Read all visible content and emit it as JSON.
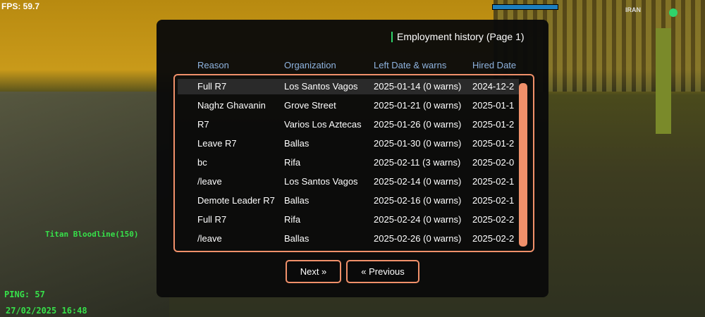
{
  "hud": {
    "fps": "FPS: 59.7",
    "logo": "IRAN",
    "player_label": "Titan Bloodline(150)",
    "ping": "PING: 57",
    "datetime": "27/02/2025 16:48"
  },
  "dialog": {
    "title": "Employment history (Page 1)",
    "columns": [
      "Reason",
      "Organization",
      "Left Date & warns",
      "Hired Date"
    ],
    "rows": [
      [
        "Full R7",
        "Los Santos Vagos",
        "2025-01-14 (0 warns)",
        "2024-12-2"
      ],
      [
        "Naghz Ghavanin",
        "Grove Street",
        "2025-01-21 (0 warns)",
        "2025-01-1"
      ],
      [
        "R7",
        "Varios Los Aztecas",
        "2025-01-26 (0 warns)",
        "2025-01-2"
      ],
      [
        "Leave R7",
        "Ballas",
        "2025-01-30 (0 warns)",
        "2025-01-2"
      ],
      [
        "bc",
        "Rifa",
        "2025-02-11 (3 warns)",
        "2025-02-0"
      ],
      [
        "/leave",
        "Los Santos Vagos",
        "2025-02-14 (0 warns)",
        "2025-02-1"
      ],
      [
        "Demote Leader R7",
        "Ballas",
        "2025-02-16 (0 warns)",
        "2025-02-1"
      ],
      [
        "Full R7",
        "Rifa",
        "2025-02-24 (0 warns)",
        "2025-02-2"
      ],
      [
        "/leave",
        "Ballas",
        "2025-02-26 (0 warns)",
        "2025-02-2"
      ]
    ],
    "buttons": {
      "next": "Next »",
      "previous": "« Previous"
    }
  }
}
